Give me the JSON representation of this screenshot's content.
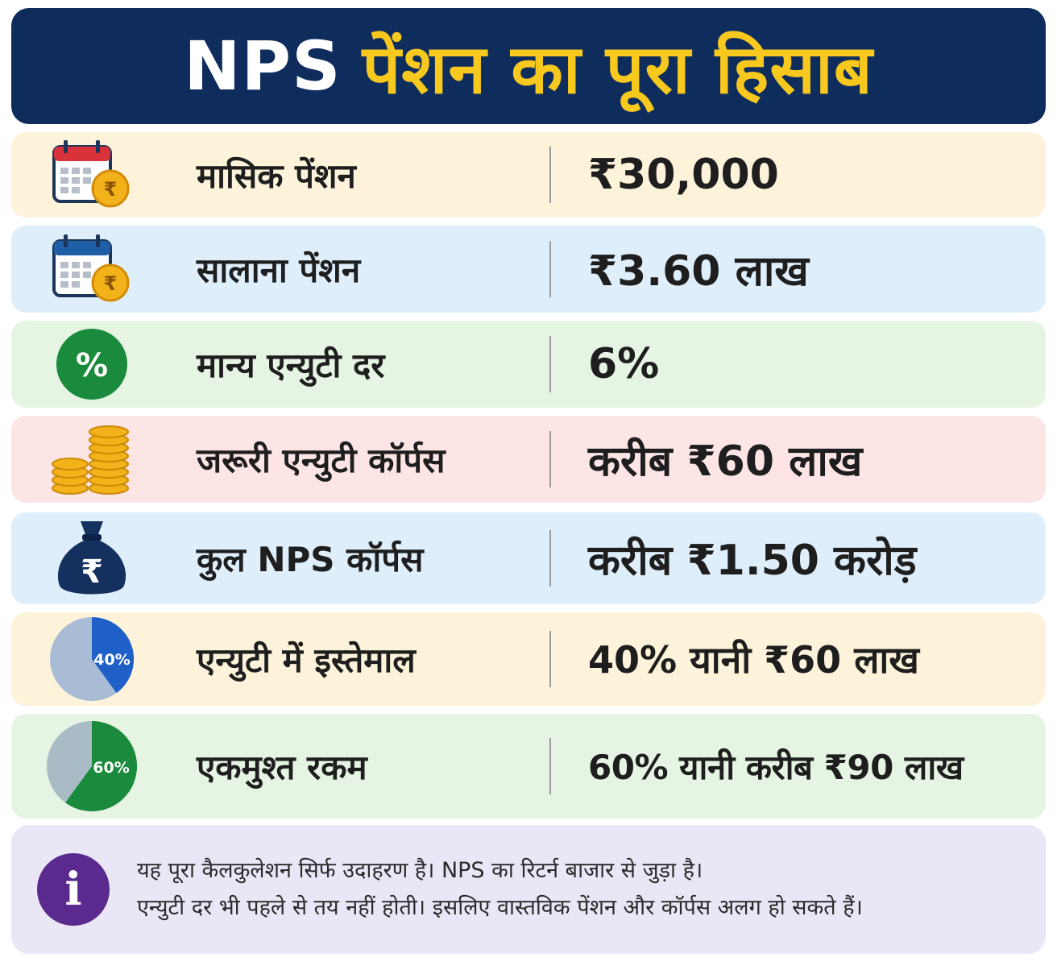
{
  "header": {
    "title_part1": "NPS",
    "title_part2": "पेंशन का पूरा हिसाब"
  },
  "colors": {
    "header_bg": "#0f2d5c",
    "header_accent": "#f7c81e",
    "row_bgs": [
      "#fcf3da",
      "#dfeefb",
      "#e6f5e3",
      "#fde5e6",
      "#dfeefb",
      "#fcf3da",
      "#e6f5e3"
    ],
    "note_bg": "#e9e7f6"
  },
  "rows": [
    {
      "icon": "calendar-rupee-icon",
      "label": "मासिक पेंशन",
      "value": "₹30,000"
    },
    {
      "icon": "calendar-rupee-icon",
      "label": "सालाना पेंशन",
      "value": "₹3.60 लाख"
    },
    {
      "icon": "percent-circle-icon",
      "icon_text": "%",
      "label": "मान्य एन्युटी दर",
      "value": "6%"
    },
    {
      "icon": "coin-stack-icon",
      "label": "जरूरी एन्युटी कॉर्पस",
      "value": "करीब ₹60 लाख"
    },
    {
      "icon": "money-bag-icon",
      "icon_text": "₹",
      "label": "कुल NPS कॉर्पस",
      "value": "करीब ₹1.50 करोड़"
    },
    {
      "icon": "pie-40-icon",
      "icon_text": "40%",
      "share": 0.4,
      "label": "एन्युटी में इस्तेमाल",
      "value": "40% यानी ₹60 लाख"
    },
    {
      "icon": "pie-60-icon",
      "icon_text": "60%",
      "share": 0.6,
      "label": "एकमुश्त रकम",
      "value": "60% यानी करीब ₹90 लाख"
    }
  ],
  "note": {
    "icon": "info-icon",
    "icon_text": "i",
    "line1": "यह पूरा कैलकुलेशन सिर्फ उदाहरण है। NPS का रिटर्न बाजार से जुड़ा है।",
    "line2": "एन्युटी दर भी पहले से तय नहीं होती। इसलिए वास्तविक पेंशन और कॉर्पस अलग हो सकते हैं।"
  }
}
